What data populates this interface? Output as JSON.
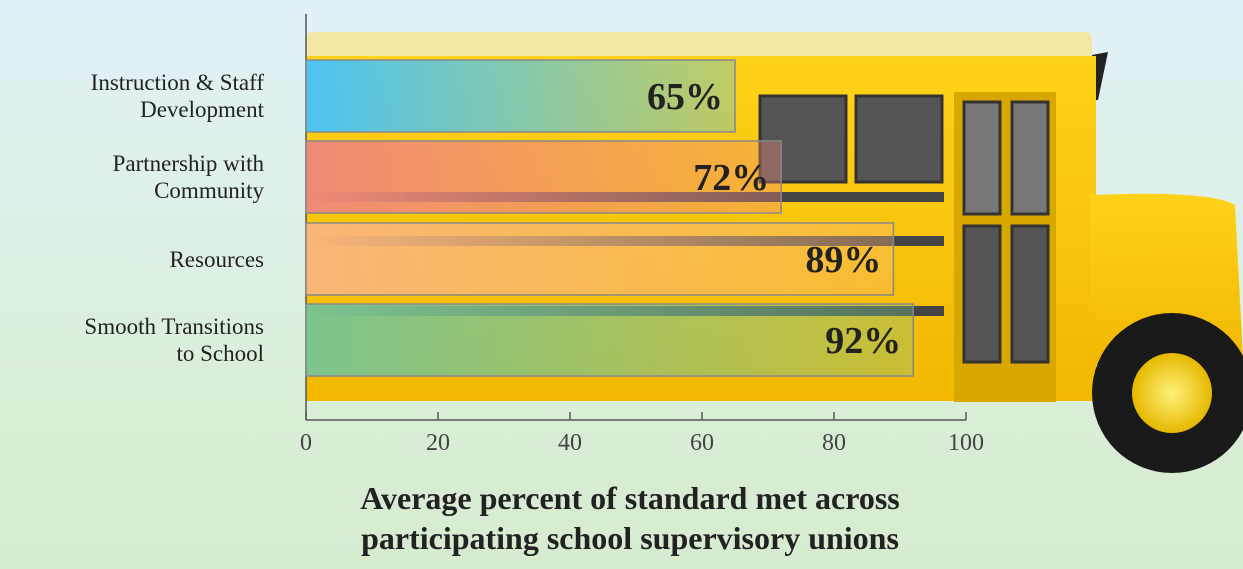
{
  "chart_data": {
    "type": "hbar",
    "categories": [
      "Instruction & Staff\nDevelopment",
      "Partnership with\nCommunity",
      "Resources",
      "Smooth Transitions\nto School"
    ],
    "values": [
      65,
      72,
      89,
      92
    ],
    "value_labels": [
      "65%",
      "72%",
      "89%",
      "92%"
    ],
    "colors": [
      "#4cc4f2",
      "#f08a77",
      "#f9b678",
      "#7dc48e"
    ],
    "xlim": [
      0,
      100
    ],
    "xticks": [
      0,
      20,
      40,
      60,
      80,
      100
    ],
    "xlabel": "Average percent of standard met across\nparticipating school supervisory unions"
  }
}
